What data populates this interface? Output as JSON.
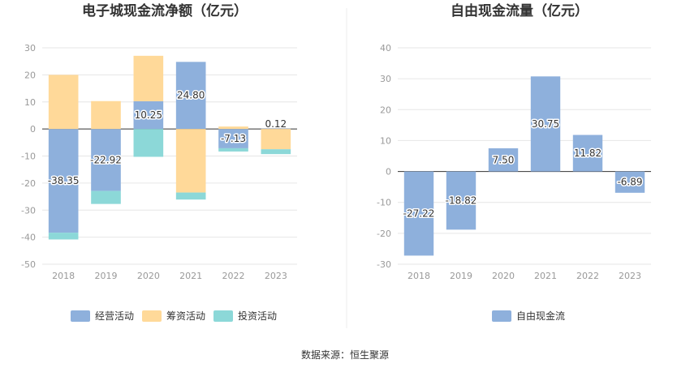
{
  "source_text": "数据来源：恒生聚源",
  "chart_data": [
    {
      "type": "bar",
      "stacked": true,
      "title": "电子城现金流净额（亿元）",
      "categories": [
        "2018",
        "2019",
        "2020",
        "2021",
        "2022",
        "2023"
      ],
      "ylim": [
        -50,
        30
      ],
      "yticks": [
        30,
        20,
        10,
        0,
        -10,
        -20,
        -30,
        -40,
        -50
      ],
      "grid": true,
      "legend_position": "bottom",
      "series": [
        {
          "name": "经营活动",
          "color": "#8eb0dc",
          "values": [
            -38.35,
            -22.92,
            10.25,
            24.8,
            -7.13,
            0.12
          ]
        },
        {
          "name": "筹资活动",
          "color": "#ffd999",
          "values": [
            20.0,
            10.3,
            16.8,
            -23.5,
            0.9,
            -7.5
          ]
        },
        {
          "name": "投资活动",
          "color": "#8cd8d8",
          "values": [
            -2.5,
            -4.8,
            -10.3,
            -2.6,
            -1.2,
            -1.8
          ]
        }
      ],
      "data_labels": [
        "-38.35",
        "-22.92",
        "10.25",
        "24.80",
        "-7.13",
        "0.12"
      ]
    },
    {
      "type": "bar",
      "title": "自由现金流量（亿元）",
      "categories": [
        "2018",
        "2019",
        "2020",
        "2021",
        "2022",
        "2023"
      ],
      "ylim": [
        -30,
        40
      ],
      "yticks": [
        40,
        30,
        20,
        10,
        0,
        -10,
        -20,
        -30
      ],
      "grid": true,
      "legend_position": "bottom",
      "series": [
        {
          "name": "自由现金流",
          "color": "#8eb0dc",
          "values": [
            -27.22,
            -18.82,
            7.5,
            30.75,
            11.82,
            -6.89
          ]
        }
      ],
      "data_labels": [
        "-27.22",
        "-18.82",
        "7.50",
        "30.75",
        "11.82",
        "-6.89"
      ]
    }
  ]
}
